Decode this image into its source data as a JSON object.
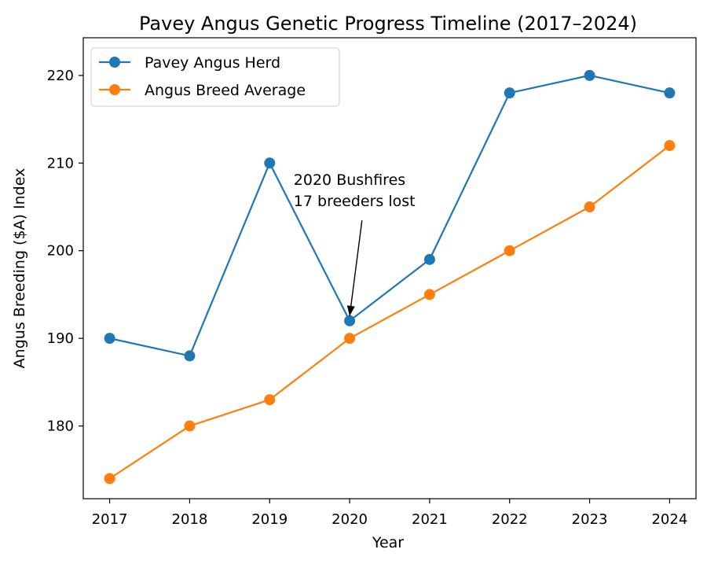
{
  "chart_data": {
    "type": "line",
    "title": "Pavey Angus Genetic Progress Timeline (2017–2024)",
    "xlabel": "Year",
    "ylabel": "Angus Breeding ($A) Index",
    "x": [
      2017,
      2018,
      2019,
      2020,
      2021,
      2022,
      2023,
      2024
    ],
    "xlim": [
      2016.67,
      2024.33
    ],
    "ylim": [
      171.7,
      224.3
    ],
    "yticks": [
      180,
      190,
      200,
      210,
      220
    ],
    "grid": false,
    "legend_position": "upper-left",
    "series": [
      {
        "name": "Pavey Angus Herd",
        "color": "#1f77b4",
        "values": [
          190,
          188,
          210,
          192,
          199,
          218,
          220,
          218
        ]
      },
      {
        "name": "Angus Breed Average",
        "color": "#ff7f0e",
        "values": [
          174,
          180,
          183,
          190,
          195,
          200,
          205,
          212
        ]
      }
    ],
    "annotations": [
      {
        "lines": [
          "2020 Bushfires",
          "17 breeders lost"
        ],
        "x": 2020,
        "y": 192,
        "text_x": 2019.3,
        "text_y": 207.5
      }
    ]
  }
}
